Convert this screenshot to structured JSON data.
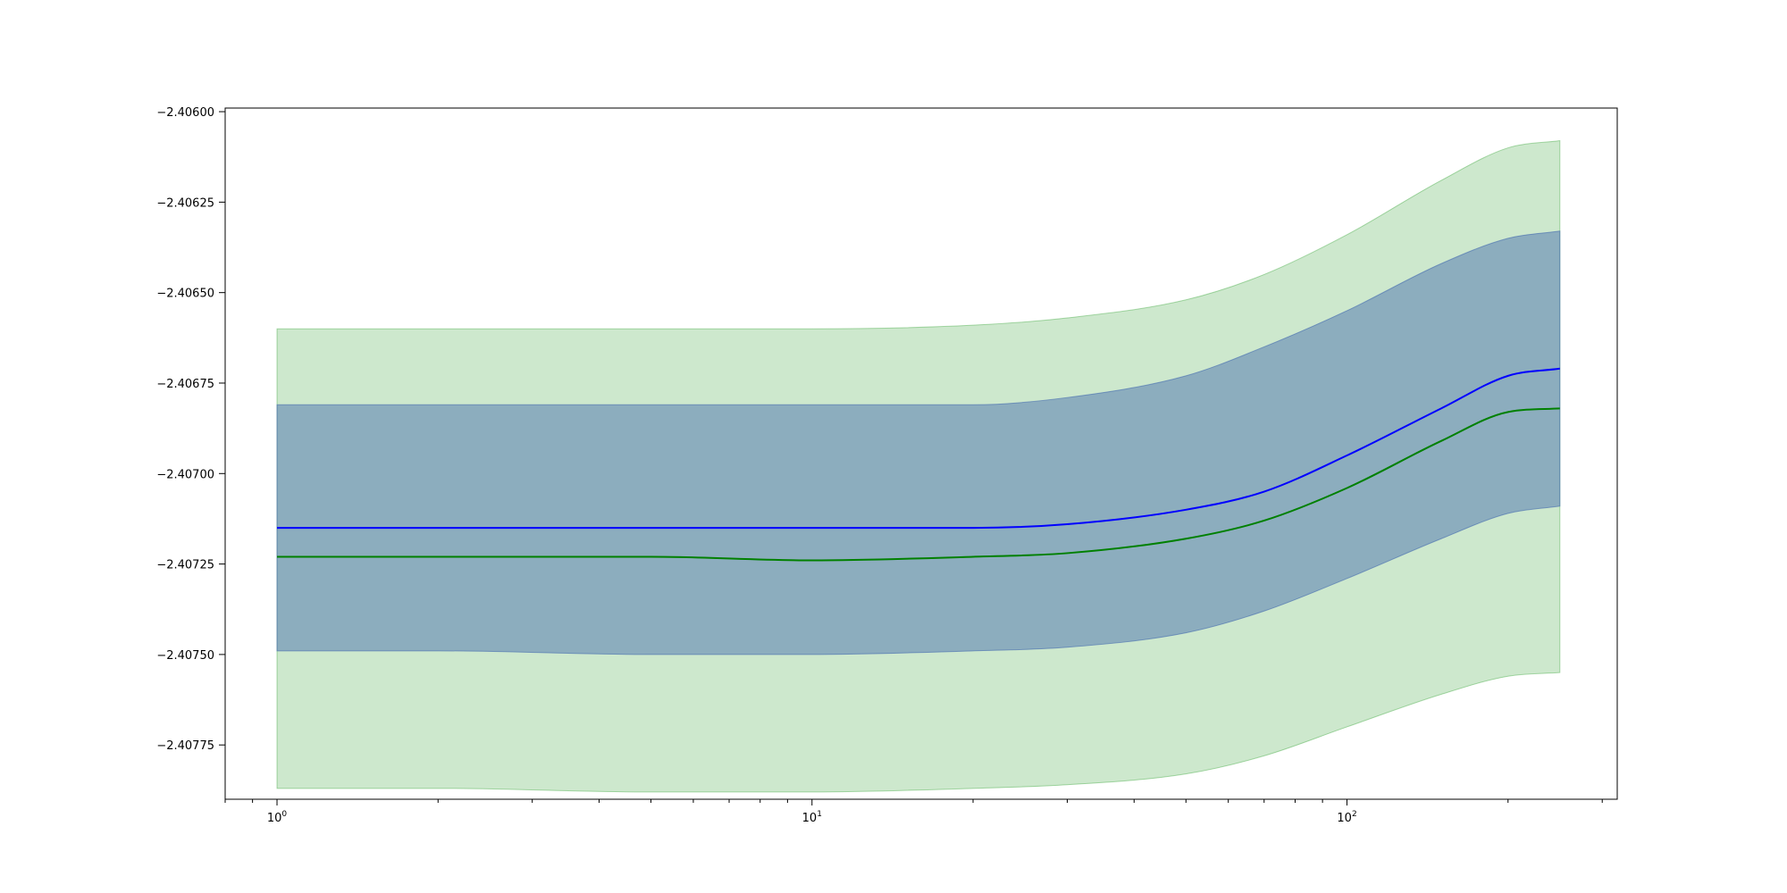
{
  "chart_data": {
    "type": "line",
    "xscale": "log",
    "xlim": [
      0.8,
      320
    ],
    "ylim": [
      -2.4079,
      -2.40599
    ],
    "grid": false,
    "x_ticks": [
      {
        "value": 1,
        "base": "10",
        "exp": "0"
      },
      {
        "value": 10,
        "base": "10",
        "exp": "1"
      },
      {
        "value": 100,
        "base": "10",
        "exp": "2"
      }
    ],
    "y_ticks": [
      {
        "value": -2.406,
        "label": "−2.40600"
      },
      {
        "value": -2.40625,
        "label": "−2.40625"
      },
      {
        "value": -2.4065,
        "label": "−2.40650"
      },
      {
        "value": -2.40675,
        "label": "−2.40675"
      },
      {
        "value": -2.407,
        "label": "−2.40700"
      },
      {
        "value": -2.40725,
        "label": "−2.40725"
      },
      {
        "value": -2.4075,
        "label": "−2.40750"
      },
      {
        "value": -2.40775,
        "label": "−2.40775"
      }
    ],
    "x": [
      1,
      2,
      5,
      10,
      20,
      30,
      50,
      70,
      100,
      150,
      200,
      250
    ],
    "bands": [
      {
        "color": "#2ca02c",
        "opacity": 0.24,
        "lower": [
          -2.40787,
          -2.40787,
          -2.40788,
          -2.40788,
          -2.40787,
          -2.40786,
          -2.40783,
          -2.40778,
          -2.4077,
          -2.40761,
          -2.40756,
          -2.40755
        ],
        "upper": [
          -2.4066,
          -2.4066,
          -2.4066,
          -2.4066,
          -2.40659,
          -2.40657,
          -2.40652,
          -2.40645,
          -2.40634,
          -2.40619,
          -2.4061,
          -2.40608
        ]
      },
      {
        "color": "#4c72b0",
        "opacity": 0.5,
        "lower": [
          -2.40749,
          -2.40749,
          -2.4075,
          -2.4075,
          -2.40749,
          -2.40748,
          -2.40744,
          -2.40738,
          -2.40729,
          -2.40718,
          -2.40711,
          -2.40709
        ],
        "upper": [
          -2.40681,
          -2.40681,
          -2.40681,
          -2.40681,
          -2.40681,
          -2.40679,
          -2.40673,
          -2.40665,
          -2.40655,
          -2.40642,
          -2.40635,
          -2.40633
        ]
      }
    ],
    "series": [
      {
        "color": "#0000ff",
        "values": [
          -2.40715,
          -2.40715,
          -2.40715,
          -2.40715,
          -2.40715,
          -2.40714,
          -2.4071,
          -2.40705,
          -2.40695,
          -2.40682,
          -2.40673,
          -2.40671
        ]
      },
      {
        "color": "#008000",
        "values": [
          -2.40723,
          -2.40723,
          -2.40723,
          -2.40724,
          -2.40723,
          -2.40722,
          -2.40718,
          -2.40713,
          -2.40704,
          -2.40691,
          -2.40683,
          -2.40682
        ]
      }
    ]
  }
}
